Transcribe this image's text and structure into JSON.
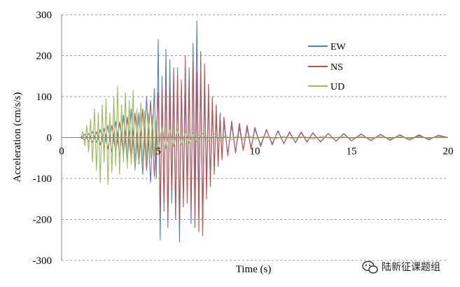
{
  "chart_data": {
    "type": "line",
    "xlabel": "Time (s)",
    "ylabel": "Acceleration (cm/s/s)",
    "xlim": [
      0,
      20
    ],
    "ylim": [
      -300,
      300
    ],
    "x_ticks": [
      "0",
      "5",
      "10",
      "15",
      "20"
    ],
    "y_ticks": [
      "300",
      "200",
      "100",
      "0",
      "-100",
      "-200",
      "-300"
    ],
    "grid": "horizontal dashed",
    "legend_position": "upper-right",
    "series": [
      {
        "name": "EW",
        "color": "#4f81bd",
        "x": [
          0,
          1.0,
          1.2,
          1.4,
          1.6,
          1.8,
          2.0,
          2.2,
          2.4,
          2.6,
          2.8,
          3.0,
          3.2,
          3.4,
          3.6,
          3.8,
          4.0,
          4.2,
          4.4,
          4.6,
          4.8,
          4.9,
          5.0,
          5.1,
          5.2,
          5.3,
          5.4,
          5.5,
          5.6,
          5.7,
          5.8,
          5.9,
          6.0,
          6.1,
          6.2,
          6.3,
          6.4,
          6.5,
          6.6,
          6.7,
          6.8,
          6.9,
          7.0,
          7.1,
          7.2,
          7.3,
          7.4,
          7.5,
          7.6,
          7.7,
          7.8,
          7.9,
          8.0,
          8.1,
          8.2,
          8.3,
          8.4,
          8.6,
          8.8,
          9.0,
          9.2,
          9.4,
          9.6,
          9.8,
          10.0,
          10.3,
          10.6,
          10.9,
          11.2,
          11.5,
          11.8,
          12.1,
          12.4,
          12.7,
          13.0,
          13.4,
          13.8,
          14.2,
          14.6,
          15.0,
          15.5,
          16.0,
          16.5,
          17.0,
          17.5,
          18.0,
          18.5,
          19.0,
          19.5,
          20.0
        ],
        "y": [
          0,
          0,
          8,
          -10,
          15,
          -12,
          20,
          -25,
          30,
          -35,
          40,
          -45,
          55,
          -60,
          70,
          -80,
          60,
          -90,
          100,
          -110,
          120,
          -100,
          240,
          -250,
          150,
          -180,
          215,
          -220,
          190,
          -160,
          120,
          -200,
          170,
          -255,
          140,
          -150,
          110,
          -120,
          170,
          -210,
          230,
          -130,
          285,
          -180,
          150,
          -220,
          120,
          -100,
          90,
          -110,
          70,
          -80,
          50,
          -60,
          40,
          -50,
          35,
          -40,
          30,
          -35,
          25,
          -30,
          22,
          -25,
          20,
          -18,
          18,
          -15,
          15,
          -14,
          12,
          -12,
          14,
          -10,
          12,
          -11,
          10,
          -9,
          10,
          -8,
          9,
          -8,
          8,
          -7,
          7,
          -6,
          7,
          -6,
          6,
          0
        ]
      },
      {
        "name": "NS",
        "color": "#c0504d",
        "x": [
          0,
          1.0,
          1.2,
          1.4,
          1.6,
          1.8,
          2.0,
          2.2,
          2.4,
          2.6,
          2.8,
          3.0,
          3.2,
          3.4,
          3.6,
          3.8,
          4.0,
          4.2,
          4.4,
          4.6,
          4.8,
          5.0,
          5.1,
          5.2,
          5.3,
          5.4,
          5.5,
          5.6,
          5.7,
          5.8,
          5.9,
          6.0,
          6.1,
          6.2,
          6.3,
          6.4,
          6.5,
          6.6,
          6.7,
          6.8,
          6.9,
          7.0,
          7.1,
          7.2,
          7.3,
          7.4,
          7.5,
          7.6,
          7.7,
          7.8,
          7.9,
          8.0,
          8.1,
          8.2,
          8.3,
          8.4,
          8.6,
          8.8,
          9.0,
          9.2,
          9.4,
          9.6,
          9.8,
          10.0,
          10.3,
          10.6,
          10.9,
          11.2,
          11.5,
          11.8,
          12.1,
          12.4,
          12.7,
          13.0,
          13.4,
          13.8,
          14.2,
          14.6,
          15.0,
          15.5,
          16.0,
          16.5,
          17.0,
          17.5,
          18.0,
          18.5,
          19.0,
          19.5,
          20.0
        ],
        "y": [
          0,
          0,
          -6,
          10,
          -12,
          14,
          -18,
          22,
          -28,
          30,
          -35,
          38,
          -42,
          50,
          -55,
          60,
          -65,
          70,
          -80,
          90,
          -95,
          110,
          -180,
          120,
          -160,
          140,
          -200,
          110,
          -130,
          170,
          -190,
          150,
          -210,
          130,
          -170,
          200,
          -160,
          140,
          -180,
          190,
          -220,
          160,
          -230,
          210,
          -240,
          180,
          -150,
          130,
          -120,
          100,
          -90,
          80,
          -70,
          60,
          -55,
          50,
          -45,
          40,
          -38,
          35,
          -32,
          30,
          -28,
          25,
          -22,
          20,
          -18,
          17,
          -15,
          14,
          -13,
          12,
          -11,
          11,
          -10,
          10,
          -9,
          9,
          -8,
          8,
          -7,
          7,
          -6,
          6,
          -6,
          5,
          -5,
          5,
          0
        ]
      },
      {
        "name": "UD",
        "color": "#9bbb59",
        "x": [
          0,
          1.0,
          1.1,
          1.2,
          1.3,
          1.4,
          1.5,
          1.6,
          1.7,
          1.8,
          1.9,
          2.0,
          2.1,
          2.2,
          2.3,
          2.4,
          2.5,
          2.6,
          2.7,
          2.8,
          2.9,
          3.0,
          3.1,
          3.2,
          3.3,
          3.4,
          3.5,
          3.6,
          3.7,
          3.8,
          3.9,
          4.0,
          4.1,
          4.2,
          4.3,
          4.4,
          4.5,
          4.6,
          4.7,
          4.8,
          4.9,
          5.0,
          5.2,
          5.4,
          5.6,
          5.8,
          6.0,
          6.2,
          6.4,
          6.6,
          6.8,
          7.0,
          7.3,
          7.6,
          7.9,
          8.2,
          8.5,
          8.8,
          9.1,
          9.4,
          9.7,
          10.0,
          10.5,
          11.0,
          11.5,
          12.0,
          12.5,
          13.0,
          13.5,
          14.0,
          14.5,
          15.0,
          15.5,
          16.0,
          16.5,
          17.0,
          17.5,
          18.0,
          18.5,
          19.0,
          19.5,
          20.0
        ],
        "y": [
          0,
          0,
          15,
          -20,
          30,
          -35,
          45,
          -60,
          70,
          -80,
          60,
          -110,
          80,
          -60,
          95,
          -115,
          60,
          -85,
          100,
          -70,
          125,
          -90,
          80,
          -60,
          110,
          -75,
          90,
          -65,
          115,
          -80,
          70,
          -60,
          85,
          -70,
          65,
          -55,
          60,
          -50,
          55,
          -45,
          40,
          -35,
          30,
          -28,
          25,
          -22,
          20,
          -18,
          15,
          -14,
          12,
          -10,
          10,
          -8,
          8,
          -7,
          6,
          -6,
          5,
          -5,
          5,
          -4,
          4,
          -4,
          3,
          -3,
          3,
          -3,
          3,
          -2,
          2,
          -2,
          2,
          -2,
          2,
          -2,
          2,
          -2,
          2,
          -2,
          2,
          0
        ]
      }
    ]
  },
  "watermark": {
    "icon": "wechat-icon",
    "text": "陆新征课题组"
  }
}
